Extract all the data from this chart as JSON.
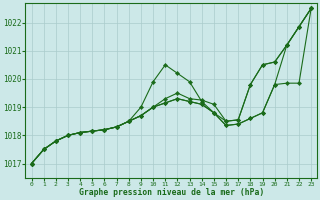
{
  "background_color": "#cce8e8",
  "grid_color": "#aacccc",
  "line_color": "#1a6b1a",
  "marker_color": "#1a6b1a",
  "title": "Graphe pression niveau de la mer (hPa)",
  "xlabel_ticks": [
    0,
    1,
    2,
    3,
    4,
    5,
    6,
    7,
    8,
    9,
    10,
    11,
    12,
    13,
    14,
    15,
    16,
    17,
    18,
    19,
    20,
    21,
    22,
    23
  ],
  "ylim": [
    1016.5,
    1022.7
  ],
  "yticks": [
    1017,
    1018,
    1019,
    1020,
    1021,
    1022
  ],
  "series": [
    [
      1017.0,
      1017.5,
      1017.8,
      1018.0,
      1018.1,
      1018.15,
      1018.2,
      1018.3,
      1018.5,
      1019.0,
      1019.9,
      1020.5,
      1020.2,
      1019.9,
      1019.2,
      1018.8,
      1018.5,
      1018.55,
      1019.8,
      1020.5,
      1020.6,
      1021.2,
      1021.85,
      1022.5
    ],
    [
      1017.0,
      1017.5,
      1017.8,
      1018.0,
      1018.1,
      1018.15,
      1018.2,
      1018.3,
      1018.5,
      1018.7,
      1019.0,
      1019.3,
      1019.5,
      1019.3,
      1019.25,
      1019.1,
      1018.5,
      1018.55,
      1019.8,
      1020.5,
      1020.6,
      1021.2,
      1021.85,
      1022.5
    ],
    [
      1017.0,
      1017.5,
      1017.8,
      1018.0,
      1018.1,
      1018.15,
      1018.2,
      1018.3,
      1018.5,
      1018.7,
      1019.0,
      1019.15,
      1019.3,
      1019.2,
      1019.1,
      1018.8,
      1018.35,
      1018.4,
      1018.6,
      1018.8,
      1019.8,
      1019.85,
      1019.85,
      1022.5
    ],
    [
      1017.0,
      1017.5,
      1017.8,
      1018.0,
      1018.1,
      1018.15,
      1018.2,
      1018.3,
      1018.5,
      1018.7,
      1019.0,
      1019.15,
      1019.3,
      1019.2,
      1019.1,
      1018.8,
      1018.35,
      1018.4,
      1018.6,
      1018.8,
      1019.8,
      1021.2,
      1021.85,
      1022.5
    ]
  ]
}
